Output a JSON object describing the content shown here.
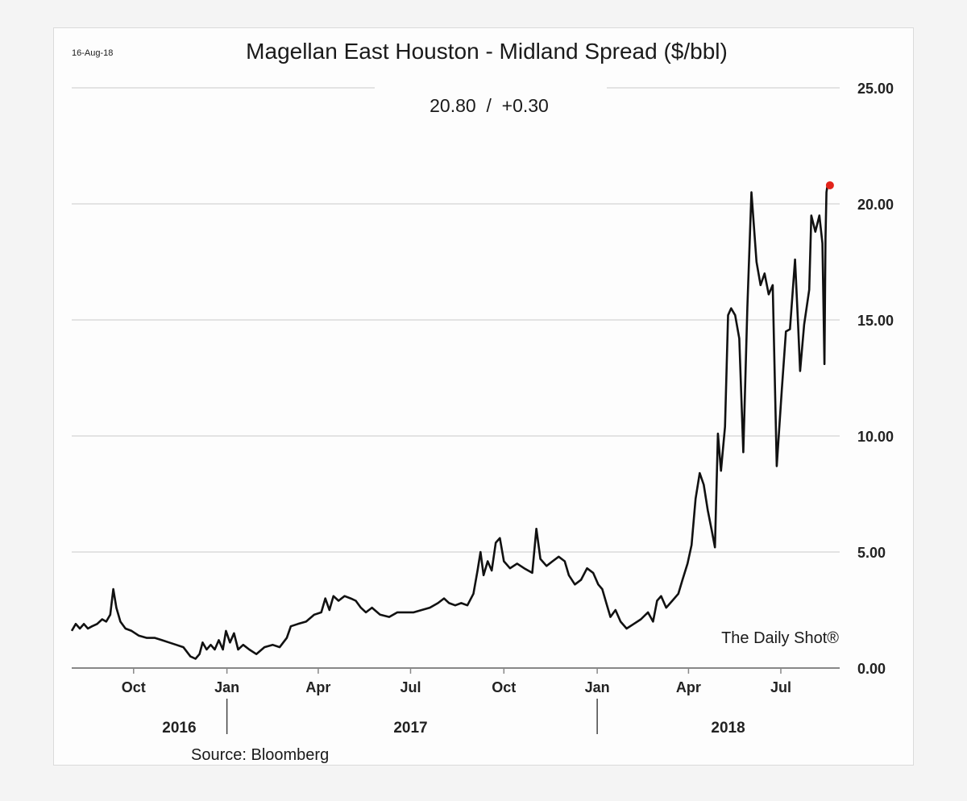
{
  "chart_data": {
    "type": "line",
    "date_label": "16-Aug-18",
    "title": "Magellan East Houston - Midland Spread ($/bbl)",
    "last_value_readout": "20.80  /  +0.30",
    "source": "Source: Bloomberg",
    "watermark": "The Daily Shot®",
    "y_axis": {
      "position": "right",
      "min": 0,
      "max": 25,
      "ticks": [
        "0.00",
        "5.00",
        "10.00",
        "15.00",
        "20.00",
        "25.00"
      ]
    },
    "x_axis": {
      "month_ticks": [
        {
          "label": "Oct",
          "date": "2016-10-01"
        },
        {
          "label": "Jan",
          "date": "2017-01-01"
        },
        {
          "label": "Apr",
          "date": "2017-04-01"
        },
        {
          "label": "Jul",
          "date": "2017-07-01"
        },
        {
          "label": "Oct",
          "date": "2017-10-01"
        },
        {
          "label": "Jan",
          "date": "2018-01-01"
        },
        {
          "label": "Apr",
          "date": "2018-04-01"
        },
        {
          "label": "Jul",
          "date": "2018-07-01"
        }
      ],
      "year_labels": [
        {
          "label": "2016",
          "date": "2016-11-15"
        },
        {
          "label": "2017",
          "date": "2017-07-01"
        },
        {
          "label": "2018",
          "date": "2018-05-10"
        }
      ],
      "year_dividers": [
        "2017-01-01",
        "2018-01-01"
      ],
      "start": "2016-08-01",
      "end": "2018-08-28"
    },
    "grid": true,
    "line_color": "#111111",
    "last_point_color": "#e2231a",
    "series": [
      {
        "points": [
          [
            "2016-08-01",
            1.6
          ],
          [
            "2016-08-05",
            1.9
          ],
          [
            "2016-08-09",
            1.7
          ],
          [
            "2016-08-13",
            1.9
          ],
          [
            "2016-08-17",
            1.7
          ],
          [
            "2016-08-21",
            1.8
          ],
          [
            "2016-08-26",
            1.9
          ],
          [
            "2016-08-31",
            2.1
          ],
          [
            "2016-09-04",
            2.0
          ],
          [
            "2016-09-08",
            2.3
          ],
          [
            "2016-09-11",
            3.4
          ],
          [
            "2016-09-14",
            2.6
          ],
          [
            "2016-09-18",
            2.0
          ],
          [
            "2016-09-23",
            1.7
          ],
          [
            "2016-09-29",
            1.6
          ],
          [
            "2016-10-06",
            1.4
          ],
          [
            "2016-10-14",
            1.3
          ],
          [
            "2016-10-22",
            1.3
          ],
          [
            "2016-10-29",
            1.2
          ],
          [
            "2016-11-05",
            1.1
          ],
          [
            "2016-11-12",
            1.0
          ],
          [
            "2016-11-19",
            0.9
          ],
          [
            "2016-11-26",
            0.5
          ],
          [
            "2016-12-01",
            0.4
          ],
          [
            "2016-12-05",
            0.6
          ],
          [
            "2016-12-08",
            1.1
          ],
          [
            "2016-12-12",
            0.8
          ],
          [
            "2016-12-16",
            1.0
          ],
          [
            "2016-12-20",
            0.8
          ],
          [
            "2016-12-24",
            1.2
          ],
          [
            "2016-12-28",
            0.8
          ],
          [
            "2016-12-31",
            1.6
          ],
          [
            "2017-01-04",
            1.1
          ],
          [
            "2017-01-08",
            1.5
          ],
          [
            "2017-01-12",
            0.8
          ],
          [
            "2017-01-17",
            1.0
          ],
          [
            "2017-01-23",
            0.8
          ],
          [
            "2017-01-30",
            0.6
          ],
          [
            "2017-02-07",
            0.9
          ],
          [
            "2017-02-15",
            1.0
          ],
          [
            "2017-02-22",
            0.9
          ],
          [
            "2017-03-01",
            1.3
          ],
          [
            "2017-03-05",
            1.8
          ],
          [
            "2017-03-12",
            1.9
          ],
          [
            "2017-03-20",
            2.0
          ],
          [
            "2017-03-28",
            2.3
          ],
          [
            "2017-04-04",
            2.4
          ],
          [
            "2017-04-08",
            3.0
          ],
          [
            "2017-04-12",
            2.5
          ],
          [
            "2017-04-16",
            3.1
          ],
          [
            "2017-04-21",
            2.9
          ],
          [
            "2017-04-27",
            3.1
          ],
          [
            "2017-05-03",
            3.0
          ],
          [
            "2017-05-08",
            2.9
          ],
          [
            "2017-05-13",
            2.6
          ],
          [
            "2017-05-18",
            2.4
          ],
          [
            "2017-05-24",
            2.6
          ],
          [
            "2017-06-01",
            2.3
          ],
          [
            "2017-06-10",
            2.2
          ],
          [
            "2017-06-18",
            2.4
          ],
          [
            "2017-06-26",
            2.4
          ],
          [
            "2017-07-04",
            2.4
          ],
          [
            "2017-07-12",
            2.5
          ],
          [
            "2017-07-20",
            2.6
          ],
          [
            "2017-07-28",
            2.8
          ],
          [
            "2017-08-03",
            3.0
          ],
          [
            "2017-08-08",
            2.8
          ],
          [
            "2017-08-14",
            2.7
          ],
          [
            "2017-08-20",
            2.8
          ],
          [
            "2017-08-26",
            2.7
          ],
          [
            "2017-09-01",
            3.2
          ],
          [
            "2017-09-05",
            4.2
          ],
          [
            "2017-09-08",
            5.0
          ],
          [
            "2017-09-11",
            4.0
          ],
          [
            "2017-09-15",
            4.6
          ],
          [
            "2017-09-19",
            4.2
          ],
          [
            "2017-09-23",
            5.4
          ],
          [
            "2017-09-27",
            5.6
          ],
          [
            "2017-10-01",
            4.6
          ],
          [
            "2017-10-07",
            4.3
          ],
          [
            "2017-10-14",
            4.5
          ],
          [
            "2017-10-21",
            4.3
          ],
          [
            "2017-10-29",
            4.1
          ],
          [
            "2017-11-02",
            6.0
          ],
          [
            "2017-11-06",
            4.7
          ],
          [
            "2017-11-12",
            4.4
          ],
          [
            "2017-11-18",
            4.6
          ],
          [
            "2017-11-24",
            4.8
          ],
          [
            "2017-11-30",
            4.6
          ],
          [
            "2017-12-04",
            4.0
          ],
          [
            "2017-12-10",
            3.6
          ],
          [
            "2017-12-16",
            3.8
          ],
          [
            "2017-12-22",
            4.3
          ],
          [
            "2017-12-28",
            4.1
          ],
          [
            "2018-01-02",
            3.6
          ],
          [
            "2018-01-06",
            3.4
          ],
          [
            "2018-01-10",
            2.8
          ],
          [
            "2018-01-14",
            2.2
          ],
          [
            "2018-01-19",
            2.5
          ],
          [
            "2018-01-24",
            2.0
          ],
          [
            "2018-01-30",
            1.7
          ],
          [
            "2018-02-06",
            1.9
          ],
          [
            "2018-02-13",
            2.1
          ],
          [
            "2018-02-20",
            2.4
          ],
          [
            "2018-02-25",
            2.0
          ],
          [
            "2018-03-01",
            2.9
          ],
          [
            "2018-03-05",
            3.1
          ],
          [
            "2018-03-10",
            2.6
          ],
          [
            "2018-03-16",
            2.9
          ],
          [
            "2018-03-22",
            3.2
          ],
          [
            "2018-03-26",
            3.8
          ],
          [
            "2018-03-31",
            4.5
          ],
          [
            "2018-04-04",
            5.3
          ],
          [
            "2018-04-08",
            7.3
          ],
          [
            "2018-04-12",
            8.4
          ],
          [
            "2018-04-16",
            7.9
          ],
          [
            "2018-04-20",
            6.8
          ],
          [
            "2018-04-24",
            5.9
          ],
          [
            "2018-04-27",
            5.2
          ],
          [
            "2018-04-30",
            10.1
          ],
          [
            "2018-05-03",
            8.5
          ],
          [
            "2018-05-07",
            10.4
          ],
          [
            "2018-05-10",
            15.2
          ],
          [
            "2018-05-13",
            15.5
          ],
          [
            "2018-05-17",
            15.2
          ],
          [
            "2018-05-21",
            14.2
          ],
          [
            "2018-05-25",
            9.3
          ],
          [
            "2018-05-29",
            15.5
          ],
          [
            "2018-06-02",
            20.5
          ],
          [
            "2018-06-07",
            17.5
          ],
          [
            "2018-06-11",
            16.5
          ],
          [
            "2018-06-15",
            17.0
          ],
          [
            "2018-06-19",
            16.1
          ],
          [
            "2018-06-23",
            16.5
          ],
          [
            "2018-06-27",
            8.7
          ],
          [
            "2018-07-02",
            12.0
          ],
          [
            "2018-07-06",
            14.5
          ],
          [
            "2018-07-10",
            14.6
          ],
          [
            "2018-07-15",
            17.6
          ],
          [
            "2018-07-18",
            14.8
          ],
          [
            "2018-07-20",
            12.8
          ],
          [
            "2018-07-24",
            14.8
          ],
          [
            "2018-07-29",
            16.3
          ],
          [
            "2018-07-31",
            19.5
          ],
          [
            "2018-08-04",
            18.8
          ],
          [
            "2018-08-08",
            19.5
          ],
          [
            "2018-08-11",
            18.3
          ],
          [
            "2018-08-13",
            13.1
          ],
          [
            "2018-08-14",
            18.5
          ],
          [
            "2018-08-15",
            20.5
          ],
          [
            "2018-08-16",
            20.8
          ]
        ]
      }
    ]
  }
}
